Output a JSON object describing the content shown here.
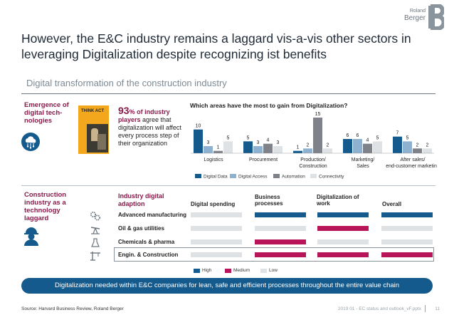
{
  "brand": {
    "top": "Roland",
    "name": "Berger"
  },
  "slide": {
    "title": "However, the E&C industry remains a laggard vis-a-vis other sectors in leveraging Digitalization despite recognizing ist benefits",
    "subtitle": "Digital transformation of the construction industry"
  },
  "left_labels": {
    "emergence": "Emergence of digital tech-nologies",
    "laggard": "Construction industry as a technology laggard"
  },
  "book": {
    "title": "THINK ACT"
  },
  "stat": {
    "big": "93",
    "pct": "% of industry",
    "players": "players",
    "rest": " agree that digitalization will affect every process step of their organization"
  },
  "chart_data": [
    {
      "type": "bar",
      "title": "Which areas have the most to gain from Digitalization?",
      "categories": [
        "Logistics",
        "Procurement",
        "Production/ Construction",
        "Marketing/ Sales",
        "After sales/ end-customer marketing"
      ],
      "series": [
        {
          "name": "Digital Data",
          "values": [
            10,
            5,
            1,
            6,
            7
          ]
        },
        {
          "name": "Digital Access",
          "values": [
            3,
            3,
            2,
            6,
            5
          ]
        },
        {
          "name": "Automation",
          "values": [
            1,
            4,
            15,
            4,
            2
          ]
        },
        {
          "name": "Connectivity",
          "values": [
            5,
            3,
            2,
            5,
            2
          ]
        }
      ],
      "ylim": [
        0,
        15
      ],
      "grid": false,
      "legend": "bottom"
    },
    {
      "type": "table",
      "title": "Industry digital adaption",
      "columns": [
        "Digital spending",
        "Business processes",
        "Digitalization of work",
        "Overall"
      ],
      "rows": [
        {
          "sector": "Advanced manufacturing",
          "levels": [
            "Low",
            "High",
            "High",
            "High"
          ]
        },
        {
          "sector": "Oil & gas utilities",
          "levels": [
            "Low",
            "Low",
            "Medium",
            "Low"
          ]
        },
        {
          "sector": "Chemicals & pharma",
          "levels": [
            "Low",
            "Medium",
            "Low",
            "Low"
          ]
        },
        {
          "sector": "Engin. & Construction",
          "levels": [
            "Low",
            "Medium",
            "Medium",
            "Medium"
          ]
        }
      ],
      "legend": [
        "High",
        "Medium",
        "Low"
      ]
    }
  ],
  "colors": {
    "digital_data": "#145a8d",
    "digital_access": "#8fb1d0",
    "automation": "#7f8389",
    "connectivity": "#dfe2e5",
    "high": "#145a8d",
    "medium": "#b8145a",
    "low": "#dfe2e5"
  },
  "icons": [
    "cloud-icon",
    "worker-icon",
    "gears-icon",
    "oil-pump-icon",
    "flask-icon",
    "crane-icon"
  ],
  "banner": "Digitalization needed within E&C companies for lean, safe and efficient processes throughout the entire value chain",
  "footer": {
    "source": "Source: Harvard Business Review, Roland Berger",
    "file": "2019 01 - EC status and outlook_vF.pptx",
    "page": "11"
  }
}
